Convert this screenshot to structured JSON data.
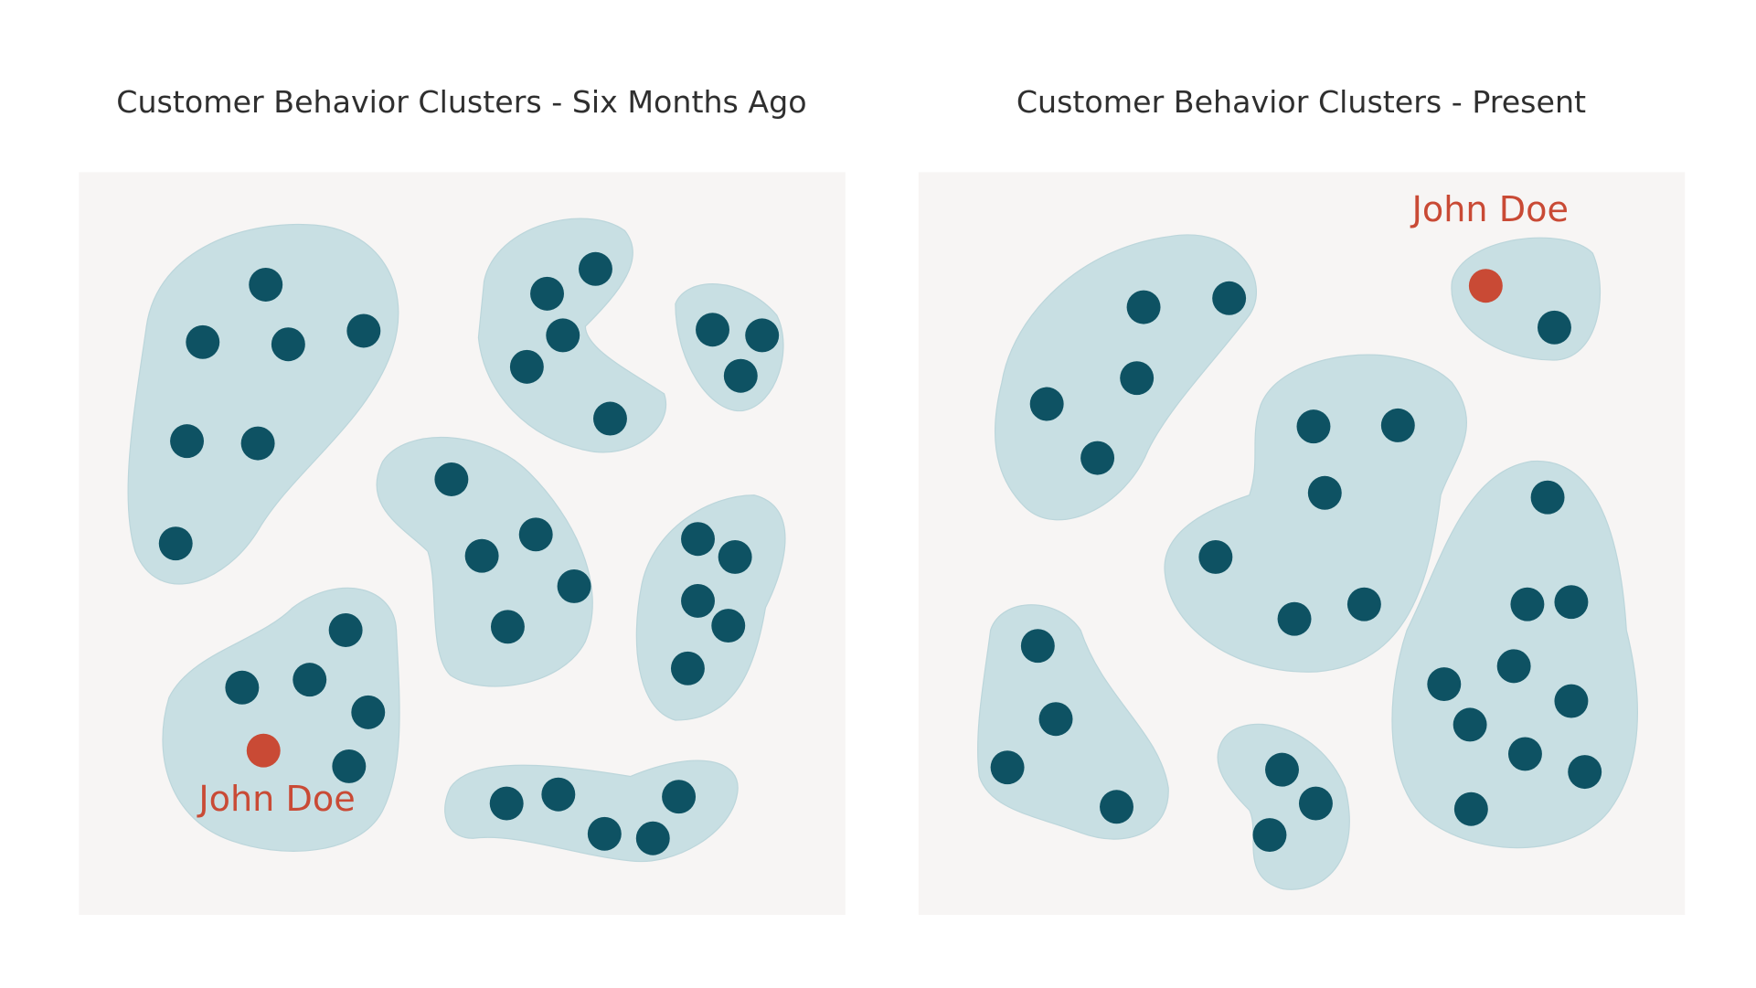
{
  "panels": [
    {
      "title": "Customer Behavior Clusters - Six Months Ago",
      "highlight_label": "John Doe"
    },
    {
      "title": "Customer Behavior Clusters - Present",
      "highlight_label": "John Doe"
    }
  ]
}
